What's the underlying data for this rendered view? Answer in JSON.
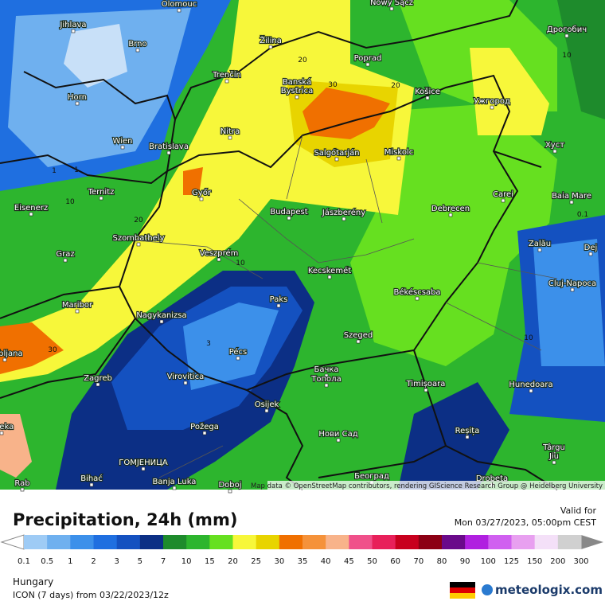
{
  "map": {
    "places": [
      "Olomouc",
      "Nowy Sącz",
      "Дрогобич",
      "Jihlava",
      "Brno",
      "Žilina",
      "Poprad",
      "Horn",
      "Trenčín",
      "Banská",
      "Bystrica",
      "Košice",
      "Ужгород",
      "Wien",
      "Bratislava",
      "Nitra",
      "Salgótarján",
      "Miskolc",
      "Хуст",
      "Ternitz",
      "Győr",
      "Carei",
      "Baia Mare",
      "Eisenerz",
      "Budapest",
      "Jászberény",
      "Debrecen",
      "Szombathely",
      "Zalău",
      "Graz",
      "Veszprém",
      "Dej",
      "Kecskemét",
      "Cluj-Napoca",
      "Maribor",
      "Paks",
      "Békéscsaba",
      "Nagykanizsa",
      "Szeged",
      "Pécs",
      "Ljubljana",
      "Zagreb",
      "Virovitica",
      "Бачка",
      "Топола",
      "Timișoara",
      "Hunedoara",
      "Osijek",
      "Rijeka",
      "Požega",
      "Нови Сад",
      "Reșița",
      "Târgu",
      "Jiu",
      "ГОМЈЕНИЦА",
      "Bihać",
      "Banja Luka",
      "Doboj",
      "Београд",
      "Drobeta",
      "Rab"
    ],
    "contour_labels": [
      "20",
      "30",
      "20",
      "10",
      "10",
      "20",
      "10",
      "30",
      "3",
      "1",
      "1",
      "10",
      "0.1"
    ],
    "attribution": "Map data © OpenStreetMap contributors, rendering GIScience Research Group @ Heidelberg University"
  },
  "panel": {
    "title": "Precipitation, 24h (mm)",
    "valid_label": "Valid for",
    "valid_time": "Mon 03/27/2023, 05:00pm CEST",
    "region": "Hungary",
    "model_run": "ICON (7 days) from 03/22/2023/12z",
    "brand": "meteologix.com"
  },
  "legend": {
    "ticks": [
      0.1,
      0.5,
      1,
      2,
      3,
      5,
      7,
      10,
      15,
      20,
      25,
      30,
      35,
      40,
      45,
      50,
      60,
      70,
      80,
      90,
      100,
      125,
      150,
      200,
      300
    ],
    "colors": [
      "#9ecbf5",
      "#6fb0ef",
      "#3c90ea",
      "#1f6fe0",
      "#1451c0",
      "#0c2f85",
      "#1e8b2c",
      "#2db52e",
      "#66e020",
      "#f7f73a",
      "#e8d400",
      "#f07000",
      "#f5923a",
      "#f8b38a",
      "#f0508a",
      "#e8205a",
      "#c8001e",
      "#8c0014",
      "#6a0a8a",
      "#b020e0",
      "#d060f0",
      "#e8a0f0",
      "#f4e0f8",
      "#d0d0d0"
    ]
  }
}
